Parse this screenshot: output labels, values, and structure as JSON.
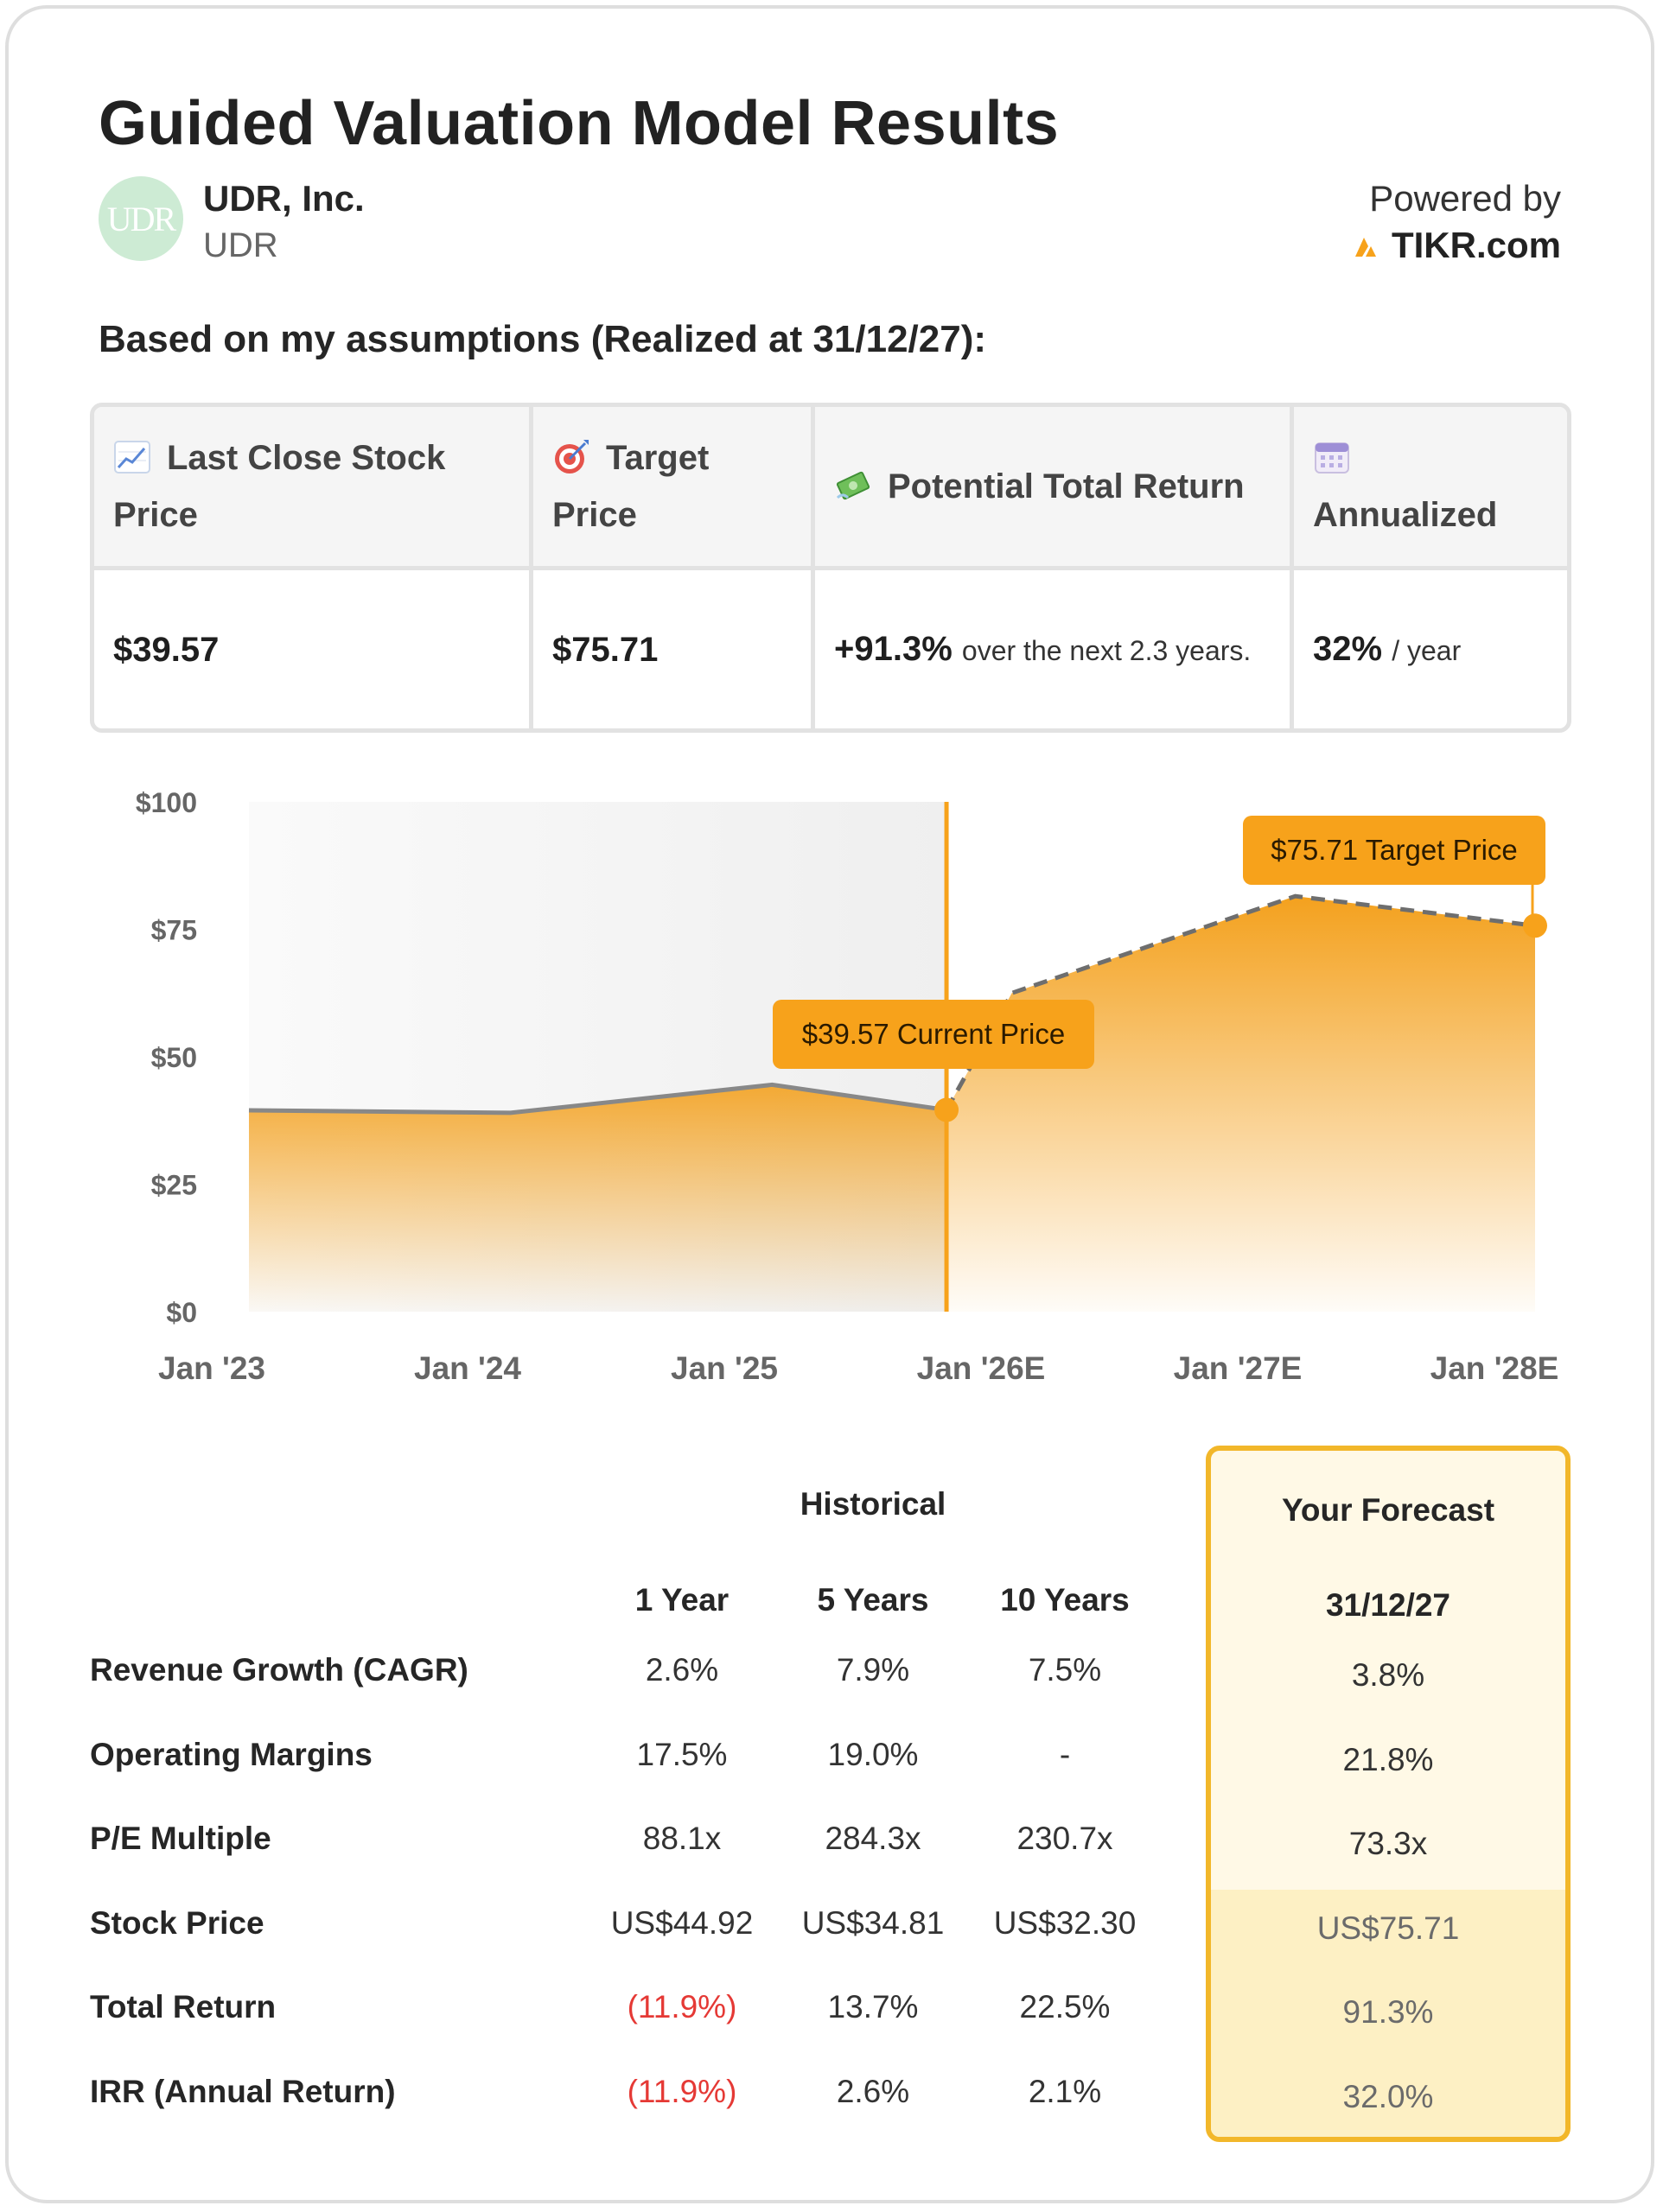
{
  "title": "Guided Valuation Model Results",
  "company": {
    "name": "UDR, Inc.",
    "ticker": "UDR",
    "logo_text": "UDR"
  },
  "powered_by": {
    "label": "Powered by",
    "brand": "TIKR.com"
  },
  "subtitle": "Based on my assumptions (Realized at 31/12/27):",
  "summary": {
    "headers": [
      {
        "icon": "chart-increasing-icon",
        "label": "Last Close Stock Price"
      },
      {
        "icon": "target-icon",
        "label": "Target Price"
      },
      {
        "icon": "money-with-wings-icon",
        "label": "Potential Total Return"
      },
      {
        "icon": "calendar-icon",
        "label": "Annualized"
      }
    ],
    "last_close": "$39.57",
    "target_price": "$75.71",
    "total_return_value": "+91.3%",
    "total_return_text": "over the next 2.3 years.",
    "annualized_value": "32%",
    "annualized_unit": "/ year"
  },
  "chart_data": {
    "type": "area",
    "x_ticks": [
      "Jan '23",
      "Jan '24",
      "Jan '25",
      "Jan '26E",
      "Jan '27E",
      "Jan '28E"
    ],
    "y_ticks": [
      "$100",
      "$75",
      "$50",
      "$25",
      "$0"
    ],
    "ylim": [
      0,
      100
    ],
    "historical": {
      "x": [
        "2023-01",
        "2024-01",
        "2025-01",
        "2025-09"
      ],
      "y": [
        39.5,
        39.0,
        44.5,
        39.57
      ]
    },
    "forecast": {
      "x": [
        "2025-09",
        "2025-12",
        "2027-01",
        "2027-12"
      ],
      "y": [
        39.57,
        62.5,
        81.5,
        75.71
      ]
    },
    "annotations": {
      "current": "$39.57 Current Price",
      "target": "$75.71 Target Price"
    },
    "colors": {
      "accent": "#f7a21b",
      "line": "#888888",
      "history_bg": "#f3f3f3"
    }
  },
  "table": {
    "group_header": "Historical",
    "forecast_header": "Your Forecast",
    "columns": [
      "1 Year",
      "5 Years",
      "10 Years"
    ],
    "forecast_column": "31/12/27",
    "rows": [
      {
        "label": "Revenue Growth (CAGR)",
        "values": [
          "2.6%",
          "7.9%",
          "7.5%"
        ],
        "forecast": "3.8%"
      },
      {
        "label": "Operating Margins",
        "values": [
          "17.5%",
          "19.0%",
          "-"
        ],
        "forecast": "21.8%"
      },
      {
        "label": "P/E Multiple",
        "values": [
          "88.1x",
          "284.3x",
          "230.7x"
        ],
        "forecast": "73.3x"
      },
      {
        "label": "Stock Price",
        "values": [
          "US$44.92",
          "US$34.81",
          "US$32.30"
        ],
        "forecast": "US$75.71"
      },
      {
        "label": "Total Return",
        "values": [
          "(11.9%)",
          "13.7%",
          "22.5%"
        ],
        "forecast": "91.3%"
      },
      {
        "label": "IRR (Annual Return)",
        "values": [
          "(11.9%)",
          "2.6%",
          "2.1%"
        ],
        "forecast": "32.0%"
      }
    ],
    "negative_color": "#e53935"
  }
}
